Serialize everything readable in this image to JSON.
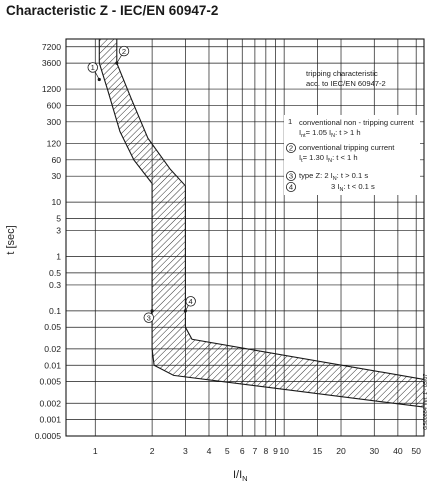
{
  "chart_data": {
    "type": "line",
    "title": "Characteristic Z - IEC/EN 60947-2",
    "xlabel": "I/I",
    "xlabel_sub": "N",
    "ylabel": "t [sec]",
    "x_scale": "log",
    "y_scale": "log",
    "xlim": [
      0.7,
      55
    ],
    "ylim": [
      0.0005,
      10000
    ],
    "grid": true,
    "x_ticks": [
      "1",
      "2",
      "3",
      "4",
      "5",
      "6",
      "7",
      "8",
      "9",
      "10",
      "15",
      "20",
      "30",
      "40",
      "50"
    ],
    "y_ticks": [
      "7200",
      "3600",
      "1200",
      "600",
      "300",
      "120",
      "60",
      "30",
      "10",
      "5",
      "3",
      "1",
      "0.5",
      "0.3",
      "0.1",
      "0.05",
      "0.02",
      "0.01",
      "0.005",
      "0.002",
      "0.001",
      "0.0005"
    ],
    "series": [
      {
        "name": "",
        "role": "tripping band boundary (left)",
        "points": [
          [
            1.05,
            10000
          ],
          [
            1.05,
            3600
          ],
          [
            1.16,
            1200
          ],
          [
            1.35,
            200
          ],
          [
            1.6,
            60
          ],
          [
            2.0,
            22
          ],
          [
            2.0,
            0.02
          ],
          [
            2.05,
            0.01
          ],
          [
            2.6,
            0.0065
          ],
          [
            55,
            0.0017
          ]
        ]
      },
      {
        "name": "",
        "role": "tripping band boundary (right)",
        "points": [
          [
            1.3,
            10000
          ],
          [
            1.3,
            3600
          ],
          [
            1.55,
            800
          ],
          [
            1.9,
            150
          ],
          [
            2.5,
            40
          ],
          [
            3.0,
            20
          ],
          [
            3.0,
            0.05
          ],
          [
            3.25,
            0.03
          ],
          [
            55,
            0.0055
          ]
        ]
      }
    ],
    "annotations": {
      "header": [
        "tripping characteristic",
        "acc. to IEC/EN 60947-2"
      ],
      "markers": [
        "1",
        "2",
        "3",
        "4"
      ],
      "legend": [
        {
          "number": "1",
          "text": "conventional non - tripping current",
          "formula": "I",
          "formula_sub": "nt",
          "formula_rest": "= 1.05 I",
          "formula_sub2": "N",
          "formula_end": ": t > 1 h"
        },
        {
          "number": "2",
          "text": "conventional tripping current",
          "formula": "I",
          "formula_sub": "t",
          "formula_rest": "= 1.30 I",
          "formula_sub2": "N",
          "formula_end": ": t < 1 h"
        },
        {
          "number": "3",
          "text": "type Z:  2 I",
          "text_sub": "N",
          "text_end": ": t > 0.1 s"
        },
        {
          "number": "4",
          "text": "3 I",
          "text_sub": "N",
          "text_end": ": t < 0.1 s"
        }
      ],
      "doc_code": "GS00884 Ver. 1 - 05/07"
    }
  },
  "colors": {
    "grid": "#1a1a1a",
    "band": "#1a1a1a",
    "background": "#ffffff"
  }
}
